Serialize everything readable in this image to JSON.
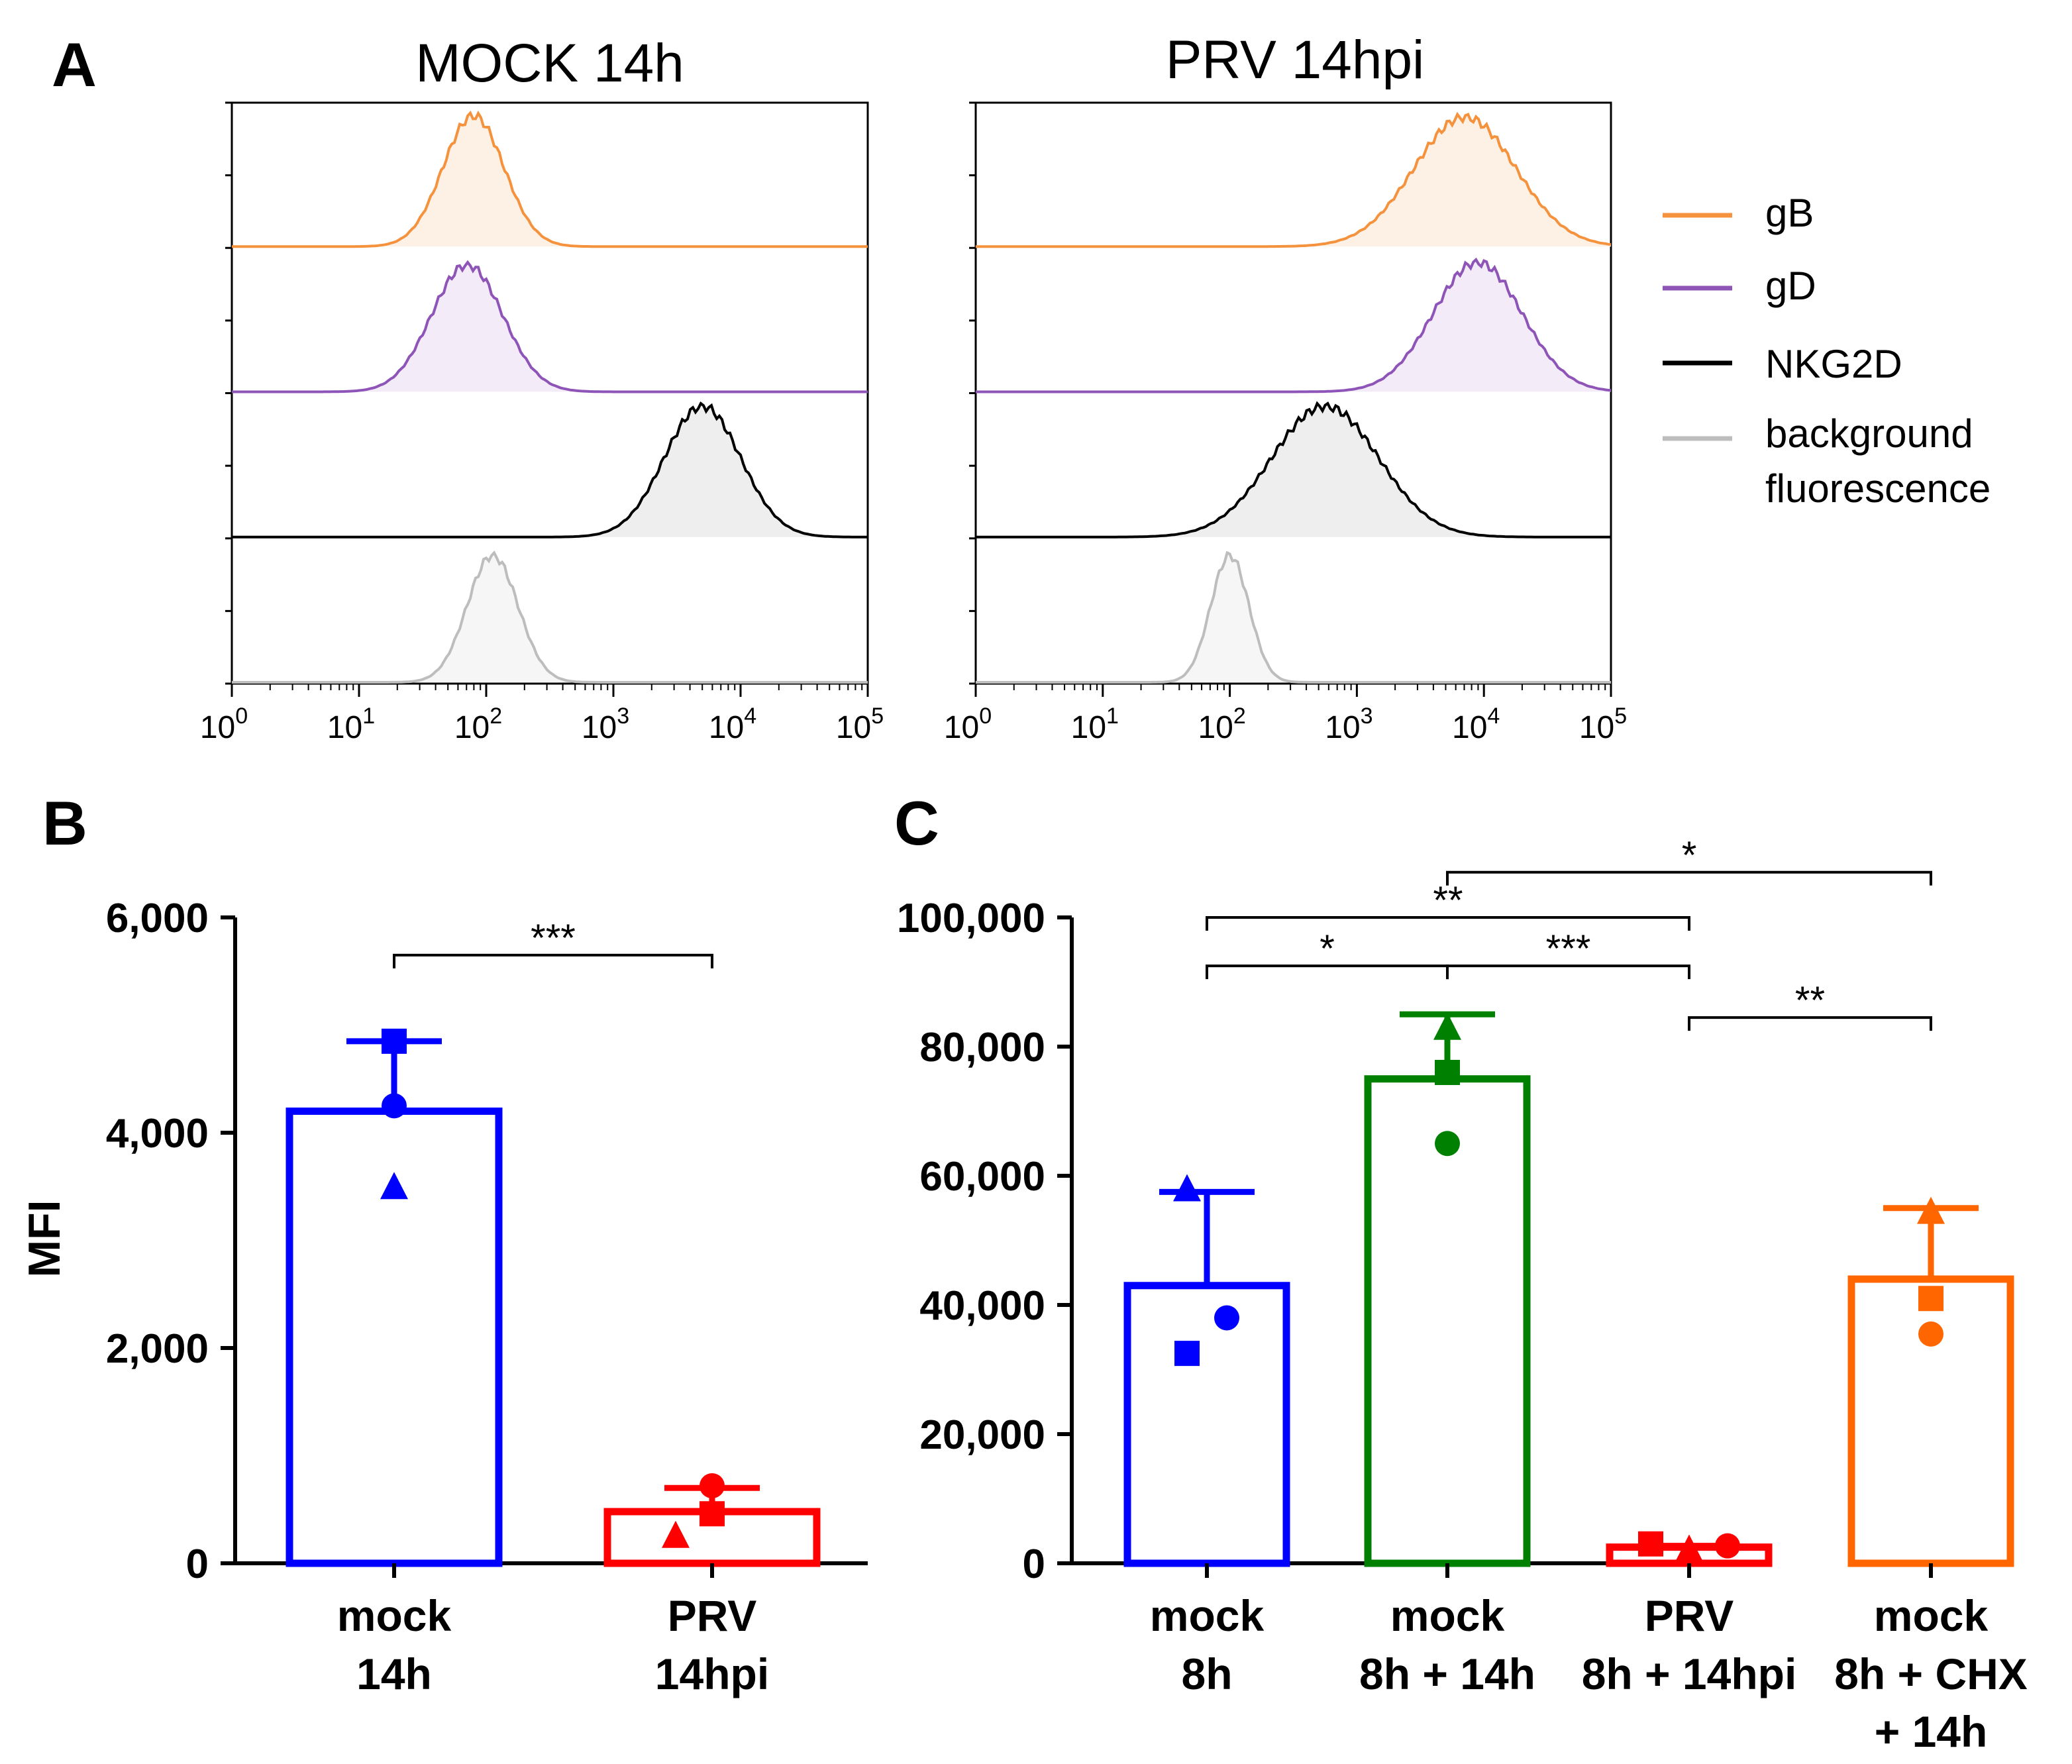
{
  "panel_labels": {
    "a": "A",
    "b": "B",
    "c": "C"
  },
  "legend": {
    "items": [
      {
        "label": "gB",
        "color": "#f5923e"
      },
      {
        "label": "gD",
        "color": "#8e54b8"
      },
      {
        "label": "NKG2D",
        "color": "#000000"
      },
      {
        "label": "background",
        "label2": "fluorescence",
        "color": "#bdbdbd"
      }
    ]
  },
  "chart_data": [
    {
      "type": "histogram-stack",
      "title": "MOCK 14h",
      "x_scale": "log10",
      "xlim": [
        1,
        100000
      ],
      "tick_labels": [
        {
          "base": "10",
          "exp": "0"
        },
        {
          "base": "10",
          "exp": "1"
        },
        {
          "base": "10",
          "exp": "2"
        },
        {
          "base": "10",
          "exp": "3"
        },
        {
          "base": "10",
          "exp": "4"
        },
        {
          "base": "10",
          "exp": "5"
        }
      ],
      "series": [
        {
          "name": "gB",
          "color": "#f5923e",
          "fill": "#fdf1e6",
          "peak_center_log10": 1.9,
          "peak_width_log10": 0.24,
          "peak_height": 0.98
        },
        {
          "name": "gD",
          "color": "#8e54b8",
          "fill": "#f3ecf8",
          "peak_center_log10": 1.85,
          "peak_width_log10": 0.28,
          "peak_height": 0.95
        },
        {
          "name": "NKG2D",
          "color": "#000000",
          "fill": "#eeeeee",
          "peak_center_log10": 3.7,
          "peak_width_log10": 0.3,
          "peak_height": 0.98
        },
        {
          "name": "background fluorescence",
          "color": "#bdbdbd",
          "fill": "#f6f6f6",
          "peak_center_log10": 2.05,
          "peak_width_log10": 0.2,
          "peak_height": 0.95
        }
      ]
    },
    {
      "type": "histogram-stack",
      "title": "PRV 14hpi",
      "x_scale": "log10",
      "xlim": [
        1,
        100000
      ],
      "tick_labels": [
        {
          "base": "10",
          "exp": "0"
        },
        {
          "base": "10",
          "exp": "1"
        },
        {
          "base": "10",
          "exp": "2"
        },
        {
          "base": "10",
          "exp": "3"
        },
        {
          "base": "10",
          "exp": "4"
        },
        {
          "base": "10",
          "exp": "5"
        }
      ],
      "series": [
        {
          "name": "gB",
          "color": "#f5923e",
          "fill": "#fdf1e6",
          "peak_center_log10": 3.85,
          "peak_width_log10": 0.4,
          "peak_height": 0.97
        },
        {
          "name": "gD",
          "color": "#8e54b8",
          "fill": "#f3ecf8",
          "peak_center_log10": 3.95,
          "peak_width_log10": 0.35,
          "peak_height": 0.97
        },
        {
          "name": "NKG2D",
          "color": "#000000",
          "fill": "#eeeeee",
          "peak_center_log10": 2.75,
          "peak_width_log10": 0.42,
          "peak_height": 0.98
        },
        {
          "name": "background fluorescence",
          "color": "#bdbdbd",
          "fill": "#f6f6f6",
          "peak_center_log10": 2.0,
          "peak_width_log10": 0.15,
          "peak_height": 0.95
        }
      ]
    },
    {
      "type": "bar",
      "panel": "B",
      "ylabel": "MFI",
      "ylim": [
        0,
        6000
      ],
      "y_ticks": [
        0,
        2000,
        4000,
        6000
      ],
      "y_tick_labels": [
        "0",
        "2,000",
        "4,000",
        "6,000"
      ],
      "bars": [
        {
          "label1": "mock",
          "label2": "14h",
          "color": "#0000ff",
          "mean": 4200,
          "err_top": 4850,
          "points": [
            {
              "shape": "square",
              "value": 4850
            },
            {
              "shape": "circle",
              "value": 4250
            },
            {
              "shape": "triangle",
              "value": 3500
            }
          ]
        },
        {
          "label1": "PRV",
          "label2": "14hpi",
          "color": "#ff0000",
          "mean": 480,
          "err_top": 700,
          "points": [
            {
              "shape": "circle",
              "value": 720
            },
            {
              "shape": "square",
              "value": 460
            },
            {
              "shape": "triangle",
              "value": 260
            }
          ]
        }
      ],
      "significance": [
        {
          "from": 0,
          "to": 1,
          "label": "***",
          "y": 5650
        }
      ]
    },
    {
      "type": "bar",
      "panel": "C",
      "ylim": [
        0,
        100000
      ],
      "y_ticks": [
        0,
        20000,
        40000,
        60000,
        80000,
        100000
      ],
      "y_tick_labels": [
        "0",
        "20,000",
        "40,000",
        "60,000",
        "80,000",
        "100,000"
      ],
      "bars": [
        {
          "label1": "mock",
          "label2": "8h",
          "color": "#0000ff",
          "mean": 43000,
          "err_top": 57500,
          "points": [
            {
              "shape": "triangle",
              "value": 58000
            },
            {
              "shape": "circle",
              "value": 38000
            },
            {
              "shape": "square",
              "value": 32500
            }
          ]
        },
        {
          "label1": "mock",
          "label2": "8h + 14h",
          "color": "#008000",
          "mean": 75000,
          "err_top": 85000,
          "points": [
            {
              "shape": "triangle",
              "value": 83000
            },
            {
              "shape": "square",
              "value": 76000
            },
            {
              "shape": "circle",
              "value": 65000
            }
          ]
        },
        {
          "label1": "PRV",
          "label2": "8h + 14hpi",
          "color": "#ff0000",
          "mean": 2500,
          "err_top": 2700,
          "points": [
            {
              "shape": "square",
              "value": 3000
            },
            {
              "shape": "triangle",
              "value": 2200
            },
            {
              "shape": "circle",
              "value": 2700
            }
          ]
        },
        {
          "label1": "mock",
          "label2": "8h + CHX",
          "label3": "+ 14h",
          "color": "#ff6600",
          "mean": 44000,
          "err_top": 55000,
          "points": [
            {
              "shape": "triangle",
              "value": 54500
            },
            {
              "shape": "square",
              "value": 41000
            },
            {
              "shape": "circle",
              "value": 35500
            }
          ]
        }
      ],
      "significance": [
        {
          "from": 1,
          "to": 3,
          "label": "*",
          "y": 107000
        },
        {
          "from": 0,
          "to": 2,
          "label": "**",
          "y": 100000
        },
        {
          "from": 0,
          "to": 1,
          "label": "*",
          "y": 92500
        },
        {
          "from": 1,
          "to": 2,
          "label": "***",
          "y": 92500
        },
        {
          "from": 2,
          "to": 3,
          "label": "**",
          "y": 84500
        }
      ]
    }
  ]
}
